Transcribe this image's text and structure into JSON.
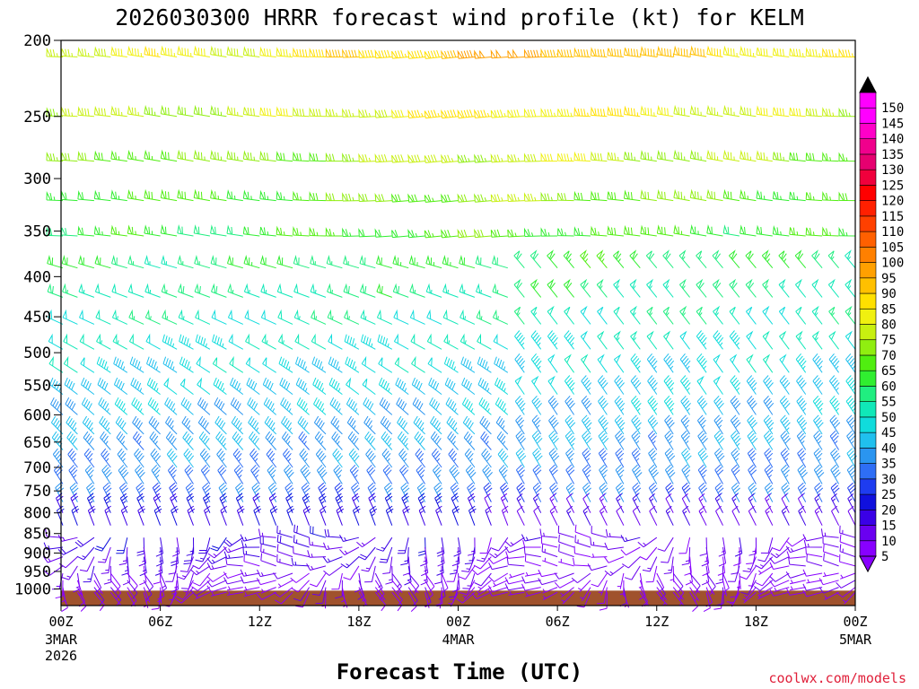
{
  "chart_data": {
    "type": "wind_barb_profile",
    "title": "2026030300 HRRR forecast wind profile (kt) for KELM",
    "xlabel": "Forecast Time (UTC)",
    "credit": "coolwx.com/models",
    "y_ticks": [
      200,
      250,
      300,
      350,
      400,
      450,
      500,
      550,
      600,
      650,
      700,
      750,
      800,
      850,
      900,
      950,
      1000
    ],
    "y_range_hpa": [
      200,
      1050
    ],
    "x_range_hours": [
      0,
      48
    ],
    "x_ticks": [
      {
        "hour": 0,
        "label": "00Z",
        "sub": [
          "3MAR",
          "2026"
        ]
      },
      {
        "hour": 6,
        "label": "06Z",
        "sub": []
      },
      {
        "hour": 12,
        "label": "12Z",
        "sub": []
      },
      {
        "hour": 18,
        "label": "18Z",
        "sub": []
      },
      {
        "hour": 24,
        "label": "00Z",
        "sub": [
          "4MAR"
        ]
      },
      {
        "hour": 30,
        "label": "06Z",
        "sub": []
      },
      {
        "hour": 36,
        "label": "12Z",
        "sub": []
      },
      {
        "hour": 42,
        "label": "18Z",
        "sub": []
      },
      {
        "hour": 48,
        "label": "00Z",
        "sub": [
          "5MAR"
        ]
      }
    ],
    "barb_levels_hpa": [
      210,
      250,
      285,
      320,
      355,
      390,
      425,
      460,
      495,
      530,
      565,
      600,
      635,
      665,
      700,
      735,
      775,
      800,
      830,
      860,
      885,
      910,
      935,
      955,
      975,
      995,
      1010
    ],
    "ground_top_hpa": 1005,
    "time_step_hours": 1,
    "colorbar": {
      "values": [
        5,
        10,
        15,
        20,
        25,
        30,
        35,
        40,
        45,
        50,
        55,
        60,
        65,
        70,
        75,
        80,
        85,
        90,
        95,
        100,
        105,
        110,
        115,
        120,
        125,
        130,
        135,
        140,
        145,
        150
      ],
      "colors": [
        "#8800ff",
        "#6a00f0",
        "#3a00e6",
        "#1010dd",
        "#1e3cf0",
        "#2e6ef5",
        "#2a95f0",
        "#20c0ee",
        "#10dcdc",
        "#10e8b8",
        "#20ee80",
        "#30ee30",
        "#50ee10",
        "#90ee10",
        "#c8f010",
        "#f0f010",
        "#ffe000",
        "#ffc000",
        "#ffa000",
        "#ff8000",
        "#ff6000",
        "#ff4000",
        "#ff2000",
        "#ff0000",
        "#f0003c",
        "#e60070",
        "#f0008c",
        "#ff00c8",
        "#ff00ff",
        "#ff00ff"
      ],
      "top_arrow_color": "#000000",
      "bottom_arrow_color": "#8800ff"
    },
    "colors": {
      "ground": "#a0522d",
      "axis": "#000000"
    }
  }
}
